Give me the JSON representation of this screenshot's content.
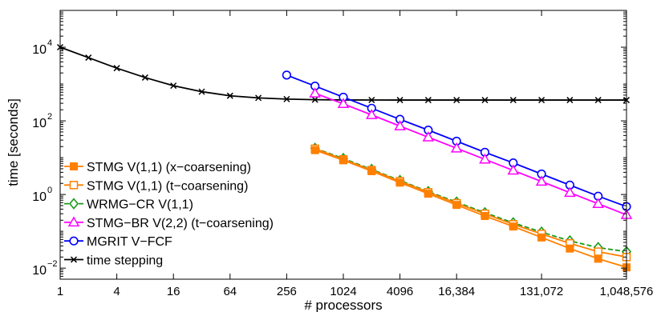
{
  "chart_data": {
    "type": "line",
    "xlabel": "# processors",
    "ylabel": "time [seconds]",
    "x_scale": "log2",
    "y_scale": "log10",
    "xlim": [
      1,
      1048576
    ],
    "ylim": [
      0.005,
      100000
    ],
    "grid": false,
    "legend_position": "bottom-left",
    "x_ticks": [
      {
        "value": 1,
        "label": "1"
      },
      {
        "value": 4,
        "label": "4"
      },
      {
        "value": 16,
        "label": "16"
      },
      {
        "value": 64,
        "label": "64"
      },
      {
        "value": 256,
        "label": "256"
      },
      {
        "value": 1024,
        "label": "1024"
      },
      {
        "value": 4096,
        "label": "4096"
      },
      {
        "value": 16384,
        "label": "16,384"
      },
      {
        "value": 131072,
        "label": "131,072"
      },
      {
        "value": 1048576,
        "label": "1,048,576"
      }
    ],
    "y_ticks": [
      {
        "value": 0.01,
        "base": "10",
        "exp": "−2"
      },
      {
        "value": 1,
        "base": "10",
        "exp": "0"
      },
      {
        "value": 100,
        "base": "10",
        "exp": "2"
      },
      {
        "value": 10000,
        "base": "10",
        "exp": "4"
      }
    ],
    "series": [
      {
        "name": "STMG V(1,1) (x−coarsening)",
        "color": "#ff8000",
        "marker": "square-filled",
        "dash": "solid",
        "x": [
          512,
          1024,
          2048,
          4096,
          8192,
          16384,
          32768,
          65536,
          131072,
          262144,
          524288,
          1048576
        ],
        "y": [
          16,
          8.5,
          4.3,
          2.1,
          1.05,
          0.52,
          0.26,
          0.135,
          0.068,
          0.034,
          0.018,
          0.0105
        ]
      },
      {
        "name": "STMG V(1,1) (t−coarsening)",
        "color": "#ff8000",
        "marker": "square-open",
        "dash": "solid",
        "x": [
          512,
          1024,
          2048,
          4096,
          8192,
          16384,
          32768,
          65536,
          131072,
          262144,
          524288,
          1048576
        ],
        "y": [
          17.5,
          9.0,
          4.6,
          2.3,
          1.15,
          0.58,
          0.3,
          0.155,
          0.085,
          0.047,
          0.028,
          0.02
        ]
      },
      {
        "name": "WRMG−CR V(1,1)",
        "color": "#1a9a1a",
        "marker": "diamond-open",
        "dash": "dashed",
        "x": [
          512,
          1024,
          2048,
          4096,
          8192,
          16384,
          32768,
          65536,
          131072,
          262144,
          524288,
          1048576
        ],
        "y": [
          18,
          9.5,
          4.8,
          2.4,
          1.2,
          0.62,
          0.32,
          0.17,
          0.095,
          0.055,
          0.036,
          0.028
        ]
      },
      {
        "name": "STMG−BR V(2,2) (t−coarsening)",
        "color": "#ff00ff",
        "marker": "triangle-open",
        "dash": "solid",
        "x": [
          512,
          1024,
          2048,
          4096,
          8192,
          16384,
          32768,
          65536,
          131072,
          262144,
          524288,
          1048576
        ],
        "y": [
          560,
          290,
          145,
          72,
          36,
          18,
          9,
          4.5,
          2.25,
          1.12,
          0.56,
          0.28
        ]
      },
      {
        "name": "MGRIT V−FCF",
        "color": "#0000ff",
        "marker": "circle-open",
        "dash": "solid",
        "x": [
          256,
          512,
          1024,
          2048,
          4096,
          8192,
          16384,
          32768,
          65536,
          131072,
          262144,
          524288,
          1048576
        ],
        "y": [
          1750,
          880,
          440,
          220,
          110,
          56,
          28,
          14,
          7.2,
          3.6,
          1.8,
          0.9,
          0.47
        ]
      },
      {
        "name": "time stepping",
        "color": "#000000",
        "marker": "x",
        "dash": "solid",
        "x": [
          1,
          2,
          4,
          8,
          16,
          32,
          64,
          128,
          256,
          512,
          1024,
          2048,
          4096,
          8192,
          16384,
          32768,
          65536,
          131072,
          262144,
          524288,
          1048576
        ],
        "y": [
          10000,
          5200,
          2700,
          1500,
          900,
          620,
          480,
          420,
          390,
          375,
          370,
          368,
          367,
          367,
          367,
          367,
          367,
          367,
          367,
          367,
          367
        ]
      }
    ]
  }
}
